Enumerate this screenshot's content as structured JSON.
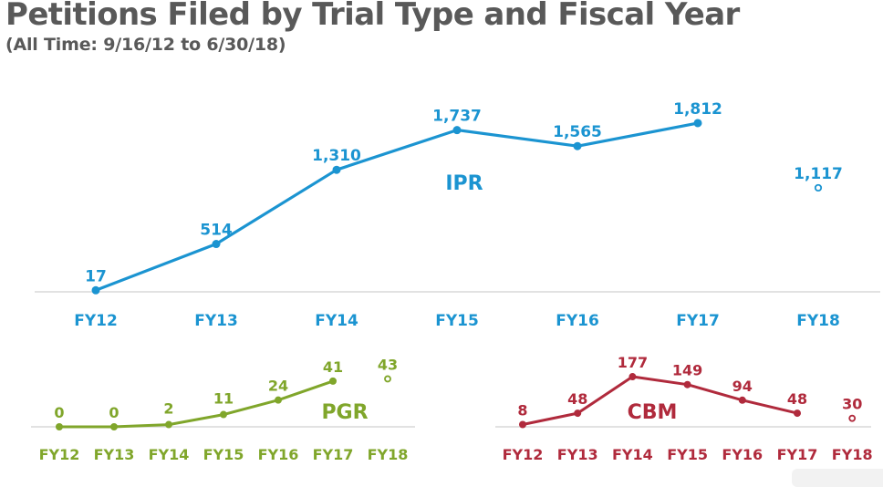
{
  "header": {
    "title": "Petitions Filed by Trial Type and Fiscal Year",
    "subtitle": "(All Time: 9/16/12 to 6/30/18)"
  },
  "chart_data": [
    {
      "type": "line",
      "name": "IPR",
      "series_label": "IPR",
      "color": "#1b94d1",
      "categories": [
        "FY12",
        "FY13",
        "FY14",
        "FY15",
        "FY16",
        "FY17",
        "FY18"
      ],
      "values": [
        17,
        514,
        1310,
        1737,
        1565,
        1812,
        1117
      ],
      "value_labels": [
        "17",
        "514",
        "1,310",
        "1,737",
        "1,565",
        "1,812",
        "1,117"
      ],
      "partial_year_index": 6,
      "partial_year_note": "FY18 shown as hollow marker, not connected",
      "ylim": [
        0,
        1900
      ],
      "grid": false,
      "xlabel": "",
      "ylabel": ""
    },
    {
      "type": "line",
      "name": "PGR",
      "series_label": "PGR",
      "color": "#80a62b",
      "categories": [
        "FY12",
        "FY13",
        "FY14",
        "FY15",
        "FY16",
        "FY17",
        "FY18"
      ],
      "values": [
        0,
        0,
        2,
        11,
        24,
        41,
        43
      ],
      "value_labels": [
        "0",
        "0",
        "2",
        "11",
        "24",
        "41",
        "43"
      ],
      "partial_year_index": 6,
      "ylim": [
        0,
        45
      ],
      "grid": false,
      "xlabel": "",
      "ylabel": ""
    },
    {
      "type": "line",
      "name": "CBM",
      "series_label": "CBM",
      "color": "#b02a3c",
      "categories": [
        "FY12",
        "FY13",
        "FY14",
        "FY15",
        "FY16",
        "FY17",
        "FY18"
      ],
      "values": [
        8,
        48,
        177,
        149,
        94,
        48,
        30
      ],
      "value_labels": [
        "8",
        "48",
        "177",
        "149",
        "94",
        "48",
        "30"
      ],
      "partial_year_index": 6,
      "ylim": [
        0,
        190
      ],
      "grid": false,
      "xlabel": "",
      "ylabel": ""
    }
  ]
}
